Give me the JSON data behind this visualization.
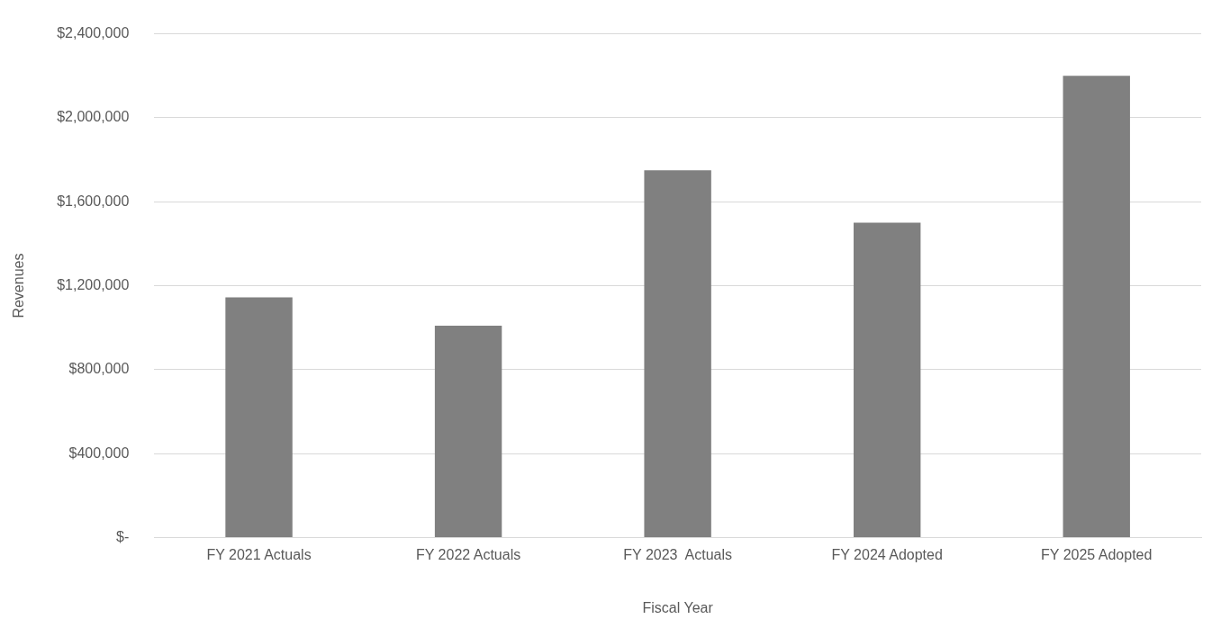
{
  "chart_data": {
    "type": "bar",
    "xlabel": "Fiscal Year",
    "ylabel": "Revenues",
    "categories": [
      "FY 2021 Actuals",
      "FY 2022 Actuals",
      "FY 2023  Actuals",
      "FY 2024 Adopted",
      "FY 2025 Adopted"
    ],
    "values": [
      1145000,
      1010000,
      1750000,
      1500000,
      2200000
    ],
    "color": "#808080",
    "ylim": [
      0,
      2400000
    ],
    "yticks": [
      {
        "value": 0,
        "label": "$-"
      },
      {
        "value": 400000,
        "label": "$400,000"
      },
      {
        "value": 800000,
        "label": "$800,000"
      },
      {
        "value": 1200000,
        "label": "$1,200,000"
      },
      {
        "value": 1600000,
        "label": "$1,600,000"
      },
      {
        "value": 2000000,
        "label": "$2,000,000"
      },
      {
        "value": 2400000,
        "label": "$2,400,000"
      }
    ],
    "grid": "y",
    "legend": false
  }
}
